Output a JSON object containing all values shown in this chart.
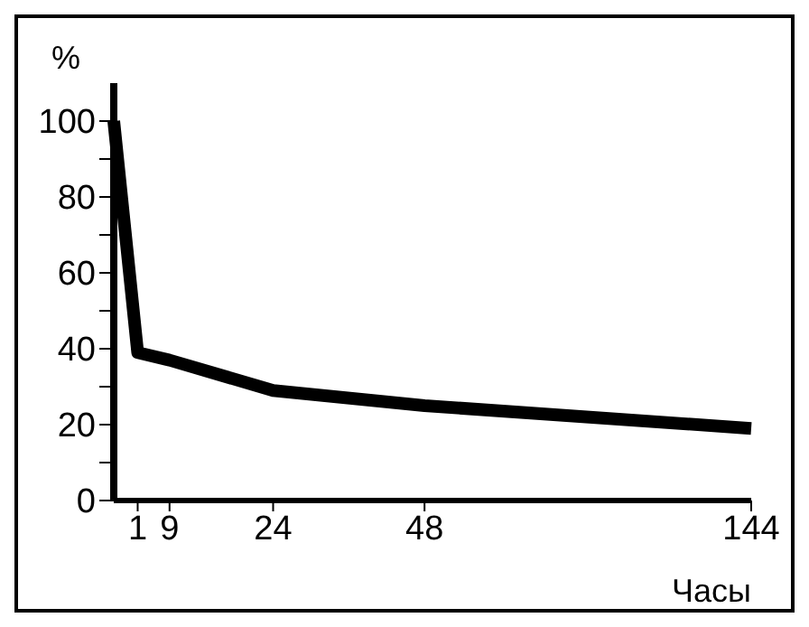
{
  "chart_data": {
    "type": "line",
    "ylabel": "%",
    "xlabel": "Часы",
    "categories": [
      null,
      null,
      null,
      "1",
      null,
      null,
      null,
      "9",
      null,
      null,
      null,
      null,
      null,
      null,
      null,
      null,
      null,
      null,
      null,
      null,
      "24",
      null,
      null,
      null,
      null,
      null,
      null,
      null,
      null,
      null,
      null,
      null,
      null,
      null,
      null,
      null,
      null,
      null,
      null,
      "48",
      null,
      null,
      null,
      null,
      null,
      null,
      null,
      null,
      null,
      null,
      null,
      null,
      null,
      null,
      null,
      null,
      null,
      null,
      null,
      null,
      null,
      null,
      null,
      null,
      null,
      null,
      null,
      null,
      null,
      null,
      null,
      null,
      null,
      null,
      null,
      null,
      null,
      null,
      null,
      null,
      "144"
    ],
    "series": [
      {
        "color": "#000000",
        "values": [
          100,
          null,
          null,
          39,
          null,
          null,
          null,
          37,
          null,
          null,
          null,
          null,
          null,
          null,
          null,
          null,
          null,
          null,
          null,
          null,
          29,
          null,
          null,
          null,
          null,
          null,
          null,
          null,
          null,
          null,
          null,
          null,
          null,
          null,
          null,
          null,
          null,
          null,
          null,
          25,
          null,
          null,
          null,
          null,
          null,
          null,
          null,
          null,
          null,
          null,
          null,
          null,
          null,
          null,
          null,
          null,
          null,
          null,
          null,
          null,
          null,
          null,
          null,
          null,
          null,
          null,
          null,
          null,
          null,
          null,
          null,
          null,
          null,
          null,
          null,
          null,
          null,
          null,
          null,
          null,
          19
        ]
      }
    ],
    "ylim": [
      0,
      110
    ],
    "yticks": [
      0,
      {
        "value": 10,
        "label": null
      },
      20,
      {
        "value": 30,
        "label": null
      },
      40,
      {
        "value": 50,
        "label": null
      },
      60,
      {
        "value": 70,
        "label": null
      },
      80,
      {
        "value": 90,
        "label": null
      },
      100
    ],
    "grid": false,
    "legend": false
  }
}
